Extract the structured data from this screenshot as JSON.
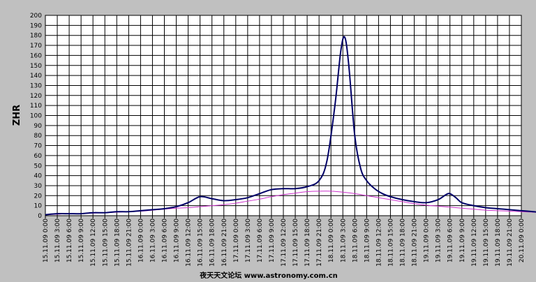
{
  "chart_data": {
    "type": "line",
    "ylabel": "ZHR",
    "ylim": [
      0,
      200
    ],
    "ytick_step": 10,
    "grid": true,
    "x_labels": [
      "15.11.09 0:00",
      "15.11.09 3:00",
      "15.11.09 6:00",
      "15.11.09 9:00",
      "15.11.09 12:00",
      "15.11.09 15:00",
      "15.11.09 18:00",
      "15.11.09 21:00",
      "16.11.09 0:00",
      "16.11.09 3:00",
      "16.11.09 6:00",
      "16.11.09 9:00",
      "16.11.09 12:00",
      "16.11.09 15:00",
      "16.11.09 18:00",
      "16.11.09 21:00",
      "17.11.09 0:00",
      "17.11.09 3:00",
      "17.11.09 6:00",
      "17.11.09 9:00",
      "17.11.09 12:00",
      "17.11.09 15:00",
      "17.11.09 18:00",
      "17.11.09 21:00",
      "18.11.09 0:00",
      "18.11.09 3:00",
      "18.11.09 6:00",
      "18.11.09 9:00",
      "18.11.09 12:00",
      "18.11.09 15:00",
      "18.11.09 18:00",
      "18.11.09 21:00",
      "19.11.09 0:00",
      "19.11.09 3:00",
      "19.11.09 6:00",
      "19.11.09 9:00",
      "19.11.09 12:00",
      "19.11.09 15:00",
      "19.11.09 18:00",
      "19.11.09 21:00",
      "20.11.09 0:00"
    ],
    "series": [
      {
        "color": "#000066",
        "values": [
          [
            0,
            1
          ],
          [
            3,
            2
          ],
          [
            6,
            2
          ],
          [
            9,
            2
          ],
          [
            12,
            3
          ],
          [
            15,
            3
          ],
          [
            18,
            4
          ],
          [
            21,
            4
          ],
          [
            24,
            5
          ],
          [
            27,
            6
          ],
          [
            30,
            7
          ],
          [
            33,
            9
          ],
          [
            36,
            13
          ],
          [
            39,
            19
          ],
          [
            42,
            17
          ],
          [
            45,
            15
          ],
          [
            48,
            16
          ],
          [
            51,
            18
          ],
          [
            54,
            22
          ],
          [
            57,
            26
          ],
          [
            60,
            27
          ],
          [
            63,
            27
          ],
          [
            66,
            29
          ],
          [
            69,
            35
          ],
          [
            71,
            55
          ],
          [
            73,
            110
          ],
          [
            74.5,
            165
          ],
          [
            75.5,
            178
          ],
          [
            76.5,
            150
          ],
          [
            78,
            80
          ],
          [
            79.5,
            47
          ],
          [
            81,
            35
          ],
          [
            83,
            27
          ],
          [
            85,
            22
          ],
          [
            87,
            19
          ],
          [
            90,
            16
          ],
          [
            93,
            14
          ],
          [
            96,
            13
          ],
          [
            99,
            16
          ],
          [
            101,
            21
          ],
          [
            102,
            22
          ],
          [
            103.5,
            18
          ],
          [
            105,
            13
          ],
          [
            108,
            10
          ],
          [
            111,
            8
          ],
          [
            114,
            7
          ],
          [
            117,
            6
          ],
          [
            120,
            5
          ],
          [
            123,
            4
          ],
          [
            126,
            3
          ],
          [
            129,
            3
          ],
          [
            132,
            2
          ],
          [
            135,
            2
          ],
          [
            138,
            2
          ],
          [
            141,
            2
          ],
          [
            144,
            2
          ]
        ]
      },
      {
        "color": "#cc33cc",
        "values": [
          [
            0,
            1
          ],
          [
            3,
            1.5
          ],
          [
            6,
            2
          ],
          [
            9,
            2
          ],
          [
            12,
            2.5
          ],
          [
            15,
            3
          ],
          [
            18,
            3.5
          ],
          [
            21,
            4
          ],
          [
            24,
            4.5
          ],
          [
            27,
            5.5
          ],
          [
            30,
            6.5
          ],
          [
            33,
            7.5
          ],
          [
            36,
            8
          ],
          [
            39,
            9
          ],
          [
            42,
            10
          ],
          [
            45,
            11
          ],
          [
            48,
            12.5
          ],
          [
            51,
            14.5
          ],
          [
            54,
            16.5
          ],
          [
            57,
            19
          ],
          [
            60,
            21
          ],
          [
            63,
            22.5
          ],
          [
            66,
            24
          ],
          [
            69,
            24.5
          ],
          [
            72,
            24.5
          ],
          [
            75,
            23.5
          ],
          [
            78,
            22
          ],
          [
            81,
            20
          ],
          [
            84,
            18
          ],
          [
            87,
            16
          ],
          [
            90,
            14
          ],
          [
            93,
            12
          ],
          [
            96,
            10.5
          ],
          [
            99,
            9.5
          ],
          [
            102,
            8.5
          ],
          [
            105,
            7.5
          ],
          [
            108,
            6.5
          ],
          [
            111,
            5.5
          ],
          [
            114,
            5
          ],
          [
            117,
            4.5
          ],
          [
            120,
            4
          ],
          [
            123,
            3.5
          ],
          [
            126,
            3
          ],
          [
            129,
            2.5
          ],
          [
            132,
            2.5
          ],
          [
            135,
            2
          ],
          [
            138,
            2
          ],
          [
            141,
            2
          ],
          [
            144,
            2
          ]
        ]
      }
    ]
  },
  "watermark": "夜天天文论坛 www.astronomy.com.cn"
}
